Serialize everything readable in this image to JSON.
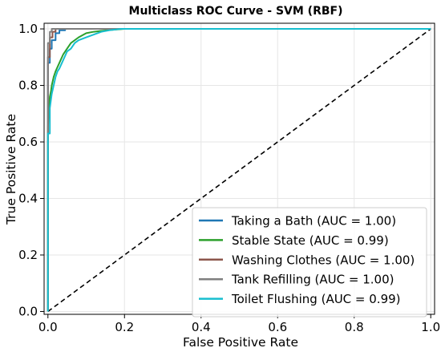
{
  "chart_data": {
    "type": "line",
    "title": "Multiclass ROC Curve - SVM (RBF)",
    "xlabel": "False Positive Rate",
    "ylabel": "True Positive Rate",
    "xlim": [
      -0.01,
      1.01
    ],
    "ylim": [
      -0.01,
      1.02
    ],
    "xticks": [
      "0.0",
      "0.2",
      "0.4",
      "0.6",
      "0.8",
      "1.0"
    ],
    "yticks": [
      "0.0",
      "0.2",
      "0.4",
      "0.6",
      "0.8",
      "1.0"
    ],
    "grid": true,
    "legend_position": "lower-right",
    "series": [
      {
        "name": "Taking a Bath (AUC = 1.00)",
        "color": "#1f77b4",
        "x": [
          0,
          0,
          0.005,
          0.005,
          0.01,
          0.01,
          0.02,
          0.02,
          0.03,
          0.03,
          0.045,
          0.045,
          1.0
        ],
        "y": [
          0,
          0.88,
          0.88,
          0.93,
          0.93,
          0.96,
          0.96,
          0.985,
          0.985,
          0.995,
          0.995,
          1.0,
          1.0
        ]
      },
      {
        "name": "Stable State (AUC = 0.99)",
        "color": "#2ca02c",
        "x": [
          0,
          0,
          0.003,
          0.005,
          0.008,
          0.01,
          0.015,
          0.02,
          0.03,
          0.04,
          0.05,
          0.06,
          0.08,
          0.1,
          0.12,
          0.14,
          0.16,
          0.18,
          0.2,
          1.0
        ],
        "y": [
          0,
          0.65,
          0.72,
          0.76,
          0.78,
          0.8,
          0.83,
          0.85,
          0.88,
          0.91,
          0.93,
          0.95,
          0.97,
          0.985,
          0.99,
          0.993,
          0.996,
          0.998,
          1.0,
          1.0
        ]
      },
      {
        "name": "Washing Clothes (AUC = 1.00)",
        "color": "#8c564b",
        "x": [
          0,
          0,
          0.005,
          0.005,
          0.012,
          0.012,
          0.02,
          0.02,
          1.0
        ],
        "y": [
          0,
          0.9,
          0.9,
          0.97,
          0.97,
          0.99,
          0.99,
          1.0,
          1.0
        ]
      },
      {
        "name": "Tank Refilling (AUC = 1.00)",
        "color": "#7f7f7f",
        "x": [
          0,
          0,
          0.005,
          0.005,
          0.01,
          0.01,
          1.0
        ],
        "y": [
          0,
          0.95,
          0.95,
          0.99,
          0.99,
          1.0,
          1.0
        ]
      },
      {
        "name": "Toilet Flushing (AUC = 0.99)",
        "color": "#17becf",
        "x": [
          0,
          0,
          0.005,
          0.005,
          0.01,
          0.015,
          0.02,
          0.025,
          0.03,
          0.04,
          0.05,
          0.06,
          0.07,
          0.08,
          0.1,
          0.12,
          0.14,
          0.16,
          0.19,
          1.0
        ],
        "y": [
          0,
          0.63,
          0.63,
          0.72,
          0.77,
          0.8,
          0.83,
          0.85,
          0.86,
          0.89,
          0.92,
          0.93,
          0.95,
          0.96,
          0.97,
          0.98,
          0.99,
          0.995,
          1.0,
          1.0
        ]
      }
    ],
    "reference_line": {
      "x": [
        0,
        1
      ],
      "y": [
        0,
        1
      ],
      "style": "dashed",
      "color": "#000000"
    }
  }
}
